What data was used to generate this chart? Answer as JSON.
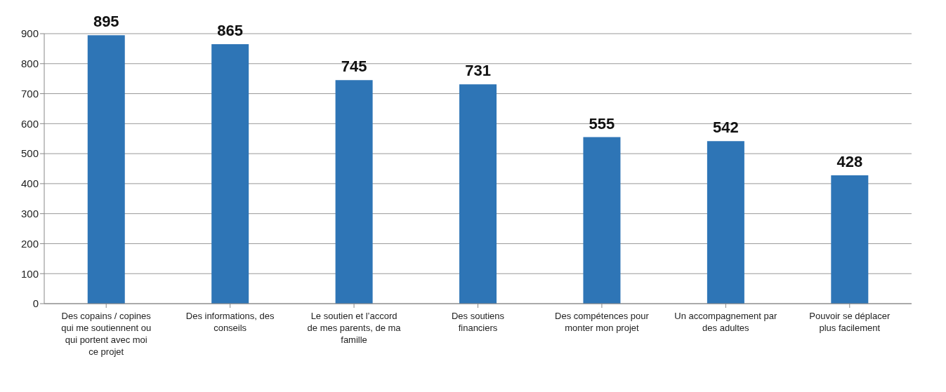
{
  "chart_data": {
    "type": "bar",
    "categories": [
      "Des copains / copines qui me soutiennent ou qui portent avec moi ce projet",
      "Des informations, des conseils",
      "Le soutien et l’accord de mes parents, de ma famille",
      "Des soutiens financiers",
      "Des compétences pour monter mon projet",
      "Un accompagnement par des adultes",
      "Pouvoir se déplacer plus facilement"
    ],
    "values": [
      895,
      865,
      745,
      731,
      555,
      542,
      428
    ],
    "color": "#2e75b6",
    "ylim": [
      0,
      900
    ],
    "yticks": [
      0,
      100,
      200,
      300,
      400,
      500,
      600,
      700,
      800,
      900
    ],
    "grid": "y",
    "data_labels": true
  }
}
